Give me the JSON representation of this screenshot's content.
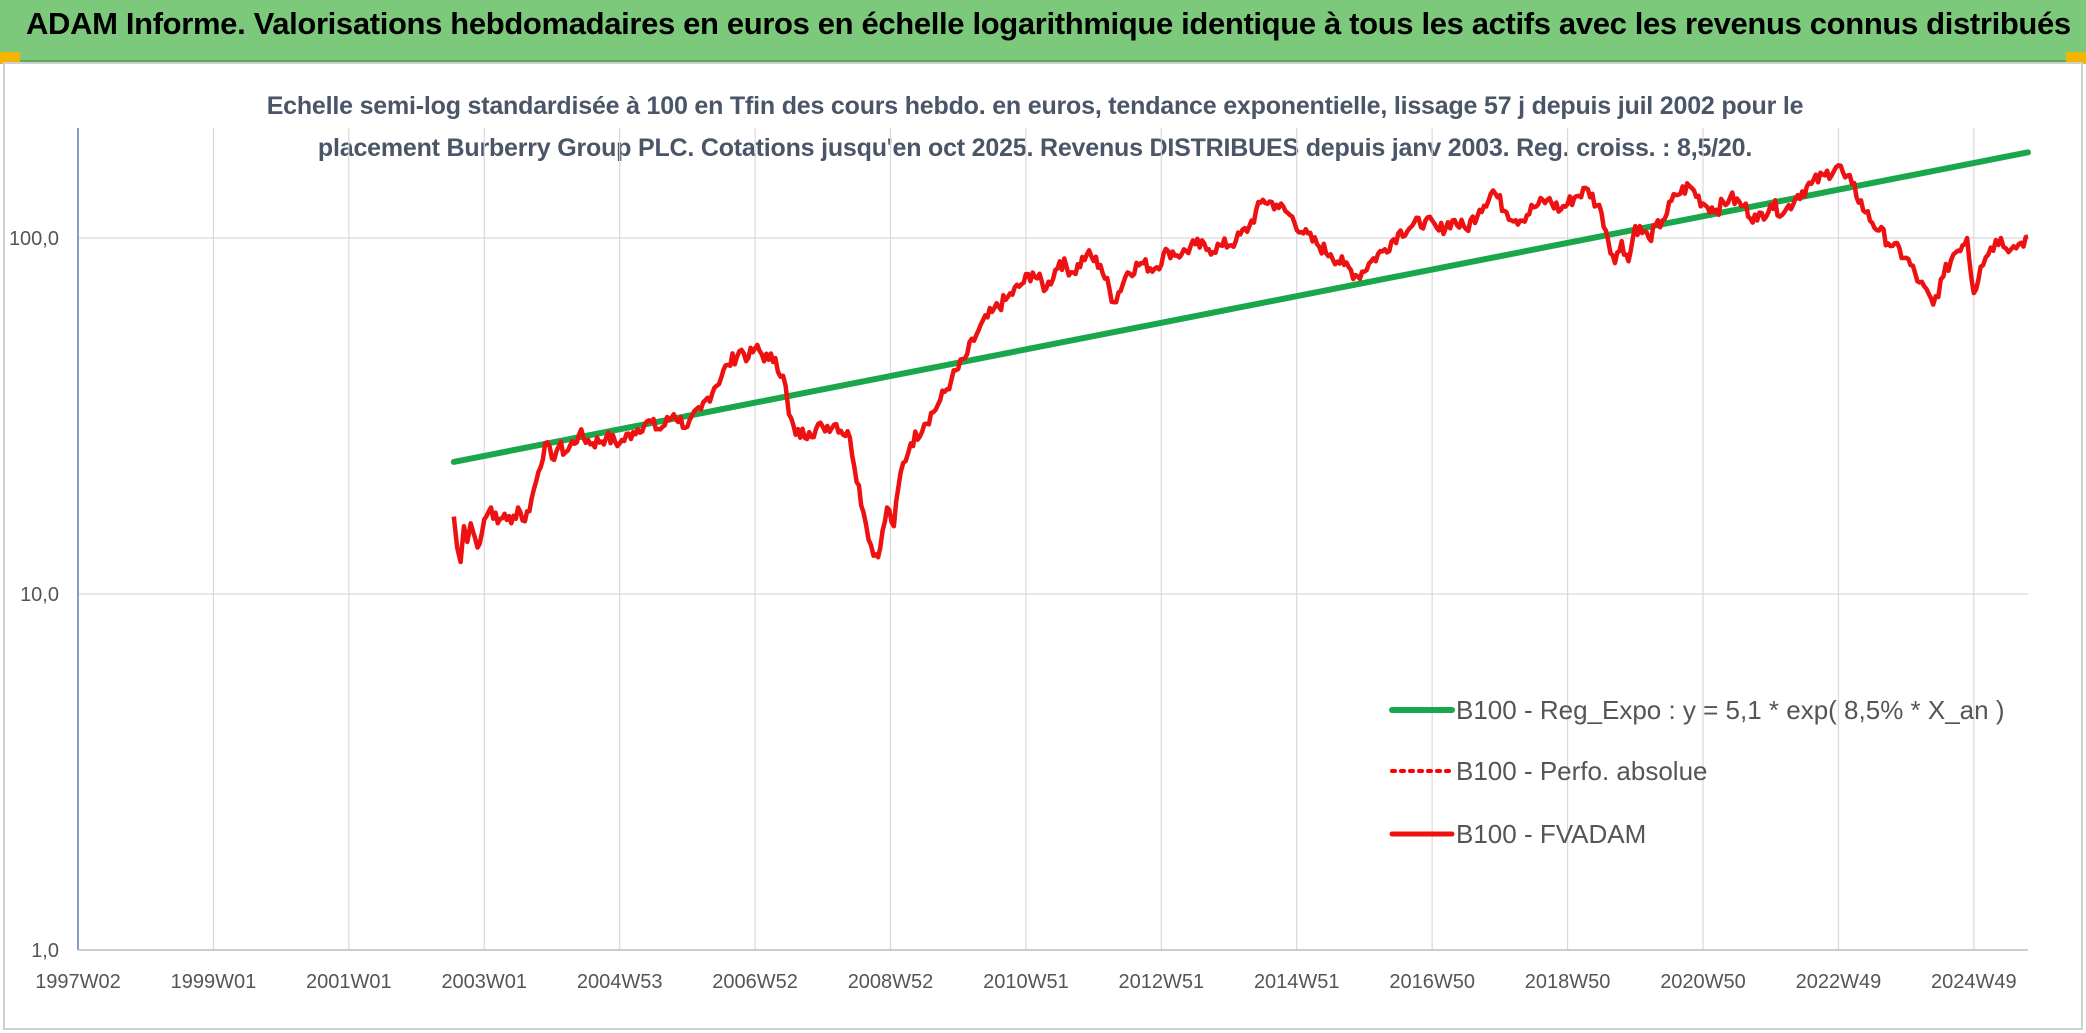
{
  "header": {
    "title": "ADAM Informe. Valorisations hebdomadaires en euros en échelle logarithmique identique à tous les actifs avec les revenus connus distribués"
  },
  "colors": {
    "banner": "#7dc97b",
    "trend": "#1aa64b",
    "perf": "#ff0000",
    "fvadam": "#ee1111",
    "grid": "#d9d9d9"
  },
  "chart_data": {
    "type": "line",
    "title_lines": [
      "Echelle semi-log standardisée à 100 en Tfin des cours hebdo. en euros, tendance exponentielle, lissage 57 j depuis juil 2002 pour le",
      "placement Burberry Group PLC. Cotations jusqu'en oct 2025. Revenus DISTRIBUES depuis janv 2003. Reg. croiss. : 8,5/20."
    ],
    "y_scale": "log",
    "ylim": [
      1,
      200
    ],
    "y_ticks": [
      1,
      10,
      100
    ],
    "y_tick_labels": [
      "1,0",
      "10,0",
      "100,0"
    ],
    "x_unit": "year",
    "xlim": [
      1997.0,
      2025.8
    ],
    "x_ticks": [
      1997.0,
      1999.0,
      2001.0,
      2003.0,
      2005.0,
      2007.0,
      2009.0,
      2011.0,
      2013.0,
      2015.0,
      2017.0,
      2019.0,
      2021.0,
      2023.0,
      2025.0
    ],
    "x_tick_labels": [
      "1997W02",
      "1999W01",
      "2001W01",
      "2003W01",
      "2004W53",
      "2006W52",
      "2008W52",
      "2010W51",
      "2012W51",
      "2014W51",
      "2016W50",
      "2018W50",
      "2020W50",
      "2022W49",
      "2024W49"
    ],
    "grid": true,
    "legend_position": "lower-right",
    "series": [
      {
        "name": "B100 - Reg_Expo : y = 5,1 * exp( 8,5% *  X_an )",
        "style": "solid-thick-green",
        "x": [
          2002.55,
          2025.8
        ],
        "y": [
          23.5,
          174
        ]
      },
      {
        "name": "B100 - Perfo. absolue",
        "style": "dotted-red",
        "x": [],
        "y": []
      },
      {
        "name": "B100 - FVADAM",
        "style": "solid-red",
        "x": [
          2002.55,
          2002.6,
          2002.65,
          2002.7,
          2002.75,
          2002.8,
          2002.9,
          2003.0,
          2003.1,
          2003.2,
          2003.3,
          2003.4,
          2003.5,
          2003.6,
          2003.7,
          2003.8,
          2003.9,
          2004.0,
          2004.1,
          2004.2,
          2004.4,
          2004.6,
          2004.8,
          2005.0,
          2005.2,
          2005.4,
          2005.6,
          2005.8,
          2006.0,
          2006.2,
          2006.4,
          2006.6,
          2006.8,
          2006.9,
          2007.0,
          2007.2,
          2007.3,
          2007.45,
          2007.5,
          2007.6,
          2007.8,
          2008.0,
          2008.2,
          2008.4,
          2008.6,
          2008.75,
          2008.85,
          2008.95,
          2009.05,
          2009.15,
          2009.3,
          2009.5,
          2009.7,
          2009.9,
          2010.1,
          2010.3,
          2010.5,
          2010.7,
          2010.9,
          2011.1,
          2011.3,
          2011.5,
          2011.7,
          2011.9,
          2012.1,
          2012.3,
          2012.5,
          2012.7,
          2012.9,
          2013.1,
          2013.3,
          2013.5,
          2013.7,
          2013.9,
          2014.1,
          2014.3,
          2014.5,
          2014.7,
          2014.9,
          2015.1,
          2015.3,
          2015.5,
          2015.7,
          2015.9,
          2016.1,
          2016.3,
          2016.5,
          2016.7,
          2016.9,
          2017.1,
          2017.3,
          2017.5,
          2017.7,
          2017.9,
          2018.1,
          2018.3,
          2018.5,
          2018.7,
          2018.9,
          2019.1,
          2019.3,
          2019.5,
          2019.7,
          2019.8,
          2019.9,
          2020.0,
          2020.2,
          2020.4,
          2020.6,
          2020.8,
          2021.0,
          2021.2,
          2021.4,
          2021.6,
          2021.8,
          2022.0,
          2022.2,
          2022.4,
          2022.6,
          2022.8,
          2023.0,
          2023.1,
          2023.2,
          2023.4,
          2023.6,
          2023.8,
          2024.0,
          2024.2,
          2024.4,
          2024.55,
          2024.7,
          2024.9,
          2025.0,
          2025.1,
          2025.25,
          2025.4,
          2025.55,
          2025.7,
          2025.8
        ],
        "y": [
          16.5,
          13.5,
          12.3,
          15.5,
          14.0,
          15.8,
          13.5,
          16.2,
          17.5,
          15.8,
          16.8,
          15.8,
          17.5,
          16.0,
          18.5,
          22.0,
          26.5,
          24.0,
          26.0,
          25.0,
          28.0,
          26.5,
          27.5,
          26.5,
          28.5,
          30.5,
          29.0,
          32.0,
          29.5,
          33.0,
          38.0,
          44.0,
          48.5,
          46.0,
          49.0,
          45.5,
          46.0,
          38.5,
          32.0,
          28.0,
          28.5,
          29.5,
          30.0,
          27.5,
          17.0,
          12.8,
          13.5,
          17.5,
          15.5,
          22.0,
          26.5,
          30.0,
          34.0,
          40.0,
          46.0,
          55.0,
          62.0,
          67.0,
          73.0,
          80.0,
          72.0,
          86.0,
          80.0,
          90.0,
          84.0,
          66.0,
          80.0,
          85.0,
          82.0,
          92.0,
          90.0,
          96.0,
          93.0,
          95.0,
          98.0,
          108.0,
          128.0,
          124.0,
          116.0,
          103.0,
          96.0,
          90.0,
          84.0,
          78.0,
          86.0,
          93.0,
          103.0,
          108.0,
          112.0,
          105.0,
          112.0,
          106.0,
          120.0,
          136.0,
          118.0,
          112.0,
          122.0,
          128.0,
          120.0,
          130.0,
          137.0,
          118.0,
          85.0,
          98.0,
          86.0,
          108.0,
          100.0,
          112.0,
          132.0,
          140.0,
          125.0,
          120.0,
          130.0,
          123.0,
          112.0,
          124.0,
          118.0,
          132.0,
          142.0,
          150.0,
          160.0,
          148.0,
          142.0,
          118.0,
          105.0,
          95.0,
          88.0,
          75.0,
          65.0,
          78.0,
          90.0,
          100.0,
          70.0,
          83.0,
          94.0,
          100.0,
          93.0,
          97.0,
          101.0
        ]
      }
    ]
  }
}
